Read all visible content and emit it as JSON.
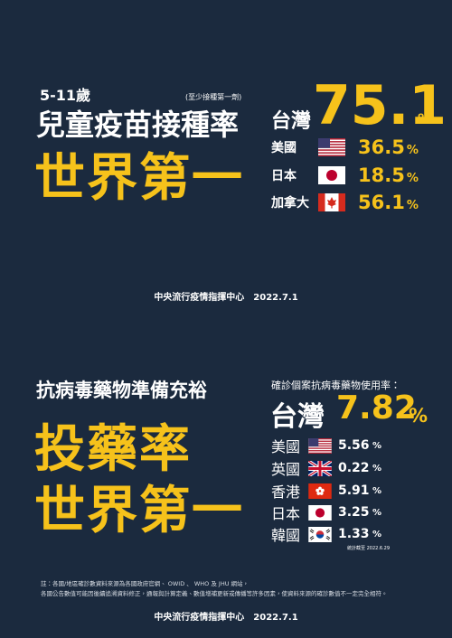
{
  "section1": {
    "age": "5-11歲",
    "note": "(至少接種第一劑)",
    "title": "兒童疫苗接種率",
    "headline": "世界第一",
    "main": {
      "country": "台灣",
      "value": "75.1",
      "unit": "%"
    },
    "others": [
      {
        "country": "美國",
        "value": "36.5",
        "unit": "%"
      },
      {
        "country": "日本",
        "value": "18.5",
        "unit": "%"
      },
      {
        "country": "加拿大",
        "value": "56.1",
        "unit": "%"
      }
    ],
    "source": "中央流行疫情指揮中心　2022.7.1"
  },
  "section2": {
    "subtitle": "抗病毒藥物準備充裕",
    "headline": [
      "投藥率",
      "世界第一"
    ],
    "label": "確診個案抗病毒藥物使用率：",
    "main": {
      "country": "台灣",
      "value": "7.82",
      "unit": "%"
    },
    "others": [
      {
        "country": "美國",
        "value": "5.56",
        "unit": "%"
      },
      {
        "country": "英國",
        "value": "0.22",
        "unit": "%"
      },
      {
        "country": "香港",
        "value": "5.91",
        "unit": "%"
      },
      {
        "country": "日本",
        "value": "3.25",
        "unit": "%"
      },
      {
        "country": "韓國",
        "value": "1.33",
        "unit": "%"
      }
    ],
    "as_of": "統計截至 2022.6.29",
    "footnotes": [
      "註：各國/地區確診數資料來源為各國政府官網、 OWID 、 WHO 及 JHU 網站，",
      "各國公告數值可能因後續追溯資料修正，通報與計算定義、數值增補更新或傳播等許多因素，使資料來源的確診數值不一定完全相符。"
    ],
    "source": "中央流行疫情指揮中心　2022.7.1"
  }
}
